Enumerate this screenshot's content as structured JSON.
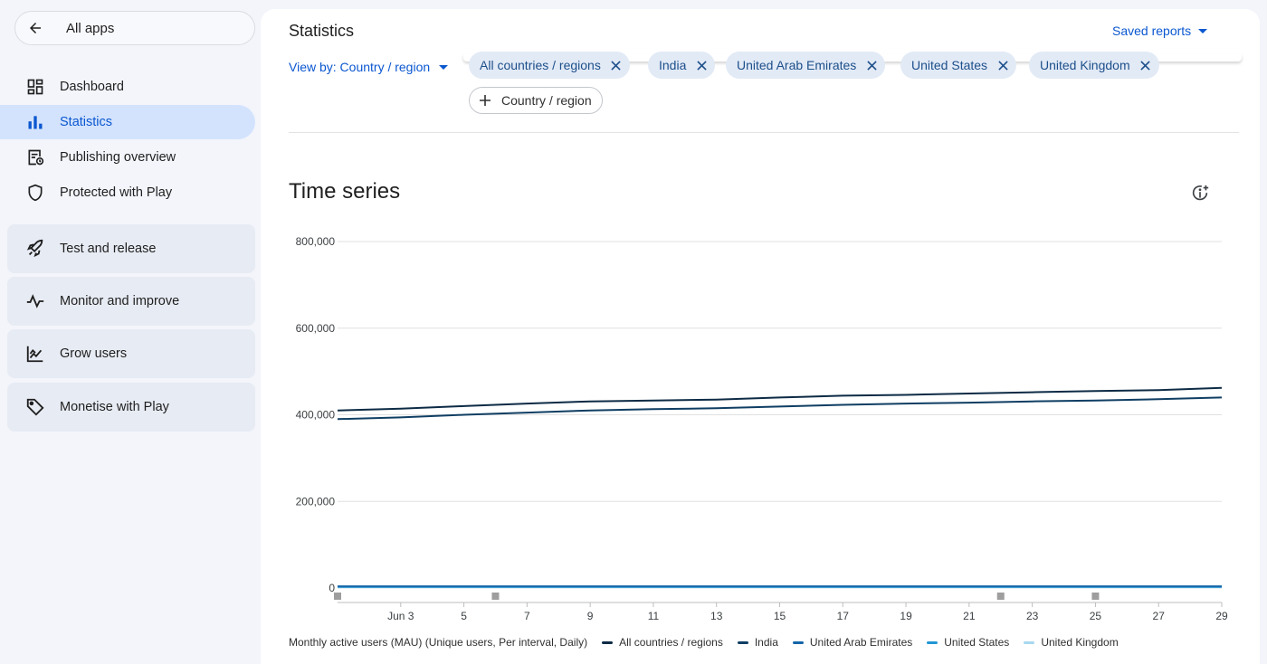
{
  "sidebar": {
    "all_apps_label": "All apps",
    "items": [
      {
        "label": "Dashboard",
        "icon": "dashboard-icon"
      },
      {
        "label": "Statistics",
        "icon": "bar-chart-icon",
        "active": true
      },
      {
        "label": "Publishing overview",
        "icon": "publishing-icon"
      },
      {
        "label": "Protected with Play",
        "icon": "shield-icon"
      }
    ],
    "groups": [
      {
        "label": "Test and release",
        "icon": "rocket-icon"
      },
      {
        "label": "Monitor and improve",
        "icon": "pulse-icon"
      },
      {
        "label": "Grow users",
        "icon": "growth-icon"
      },
      {
        "label": "Monetise with Play",
        "icon": "tag-icon"
      }
    ]
  },
  "header": {
    "title": "Statistics",
    "saved_reports_label": "Saved reports"
  },
  "filters": {
    "view_by_label": "View by: Country / region",
    "chips": [
      "All countries / regions",
      "India",
      "United Arab Emirates",
      "United States",
      "United Kingdom"
    ],
    "add_chip_label": "Country / region"
  },
  "time_series": {
    "title": "Time series",
    "legend_description": "Monthly active users (MAU) (Unique users, Per interval, Daily)"
  },
  "colors": {
    "accent": "#0b57d0",
    "series": [
      "#0d2b45",
      "#0f3e63",
      "#1565a8",
      "#2196d3",
      "#a7d8f0"
    ]
  },
  "chart_data": {
    "type": "line",
    "x": [
      "Jun 1",
      "Jun 3",
      "Jun 5",
      "Jun 7",
      "Jun 9",
      "Jun 11",
      "Jun 13",
      "Jun 15",
      "Jun 17",
      "Jun 19",
      "Jun 21",
      "Jun 23",
      "Jun 25",
      "Jun 27",
      "Jun 29"
    ],
    "x_tick_labels": [
      "Jun 3",
      "5",
      "7",
      "9",
      "11",
      "13",
      "15",
      "17",
      "19",
      "21",
      "23",
      "25",
      "27",
      "29"
    ],
    "y_tick_labels": [
      "800,000",
      "600,000",
      "400,000",
      "200,000",
      "0"
    ],
    "ylim": [
      0,
      800000
    ],
    "grid": true,
    "legend_position": "bottom",
    "series": [
      {
        "name": "All countries / regions",
        "values": [
          410000,
          414000,
          420000,
          426000,
          431000,
          433000,
          435000,
          440000,
          444000,
          446000,
          449000,
          452000,
          455000,
          457000,
          462000
        ]
      },
      {
        "name": "India",
        "values": [
          390000,
          394000,
          400000,
          405000,
          410000,
          413000,
          415000,
          419000,
          423000,
          426000,
          428000,
          431000,
          433000,
          436000,
          440000
        ]
      },
      {
        "name": "United Arab Emirates",
        "values": [
          4000,
          4000,
          4000,
          4000,
          4000,
          4000,
          4000,
          4000,
          4000,
          4000,
          4000,
          4000,
          4000,
          4000,
          4000
        ]
      },
      {
        "name": "United States",
        "values": [
          2500,
          2500,
          2500,
          2500,
          2500,
          2500,
          2500,
          2500,
          2500,
          2500,
          2500,
          2500,
          2500,
          2500,
          2500
        ]
      },
      {
        "name": "United Kingdom",
        "values": [
          1500,
          1500,
          1500,
          1500,
          1500,
          1500,
          1500,
          1500,
          1500,
          1500,
          1500,
          1500,
          1500,
          1500,
          1500
        ]
      }
    ],
    "event_markers_x": [
      "Jun 1",
      "Jun 6",
      "Jun 22",
      "Jun 25"
    ]
  }
}
